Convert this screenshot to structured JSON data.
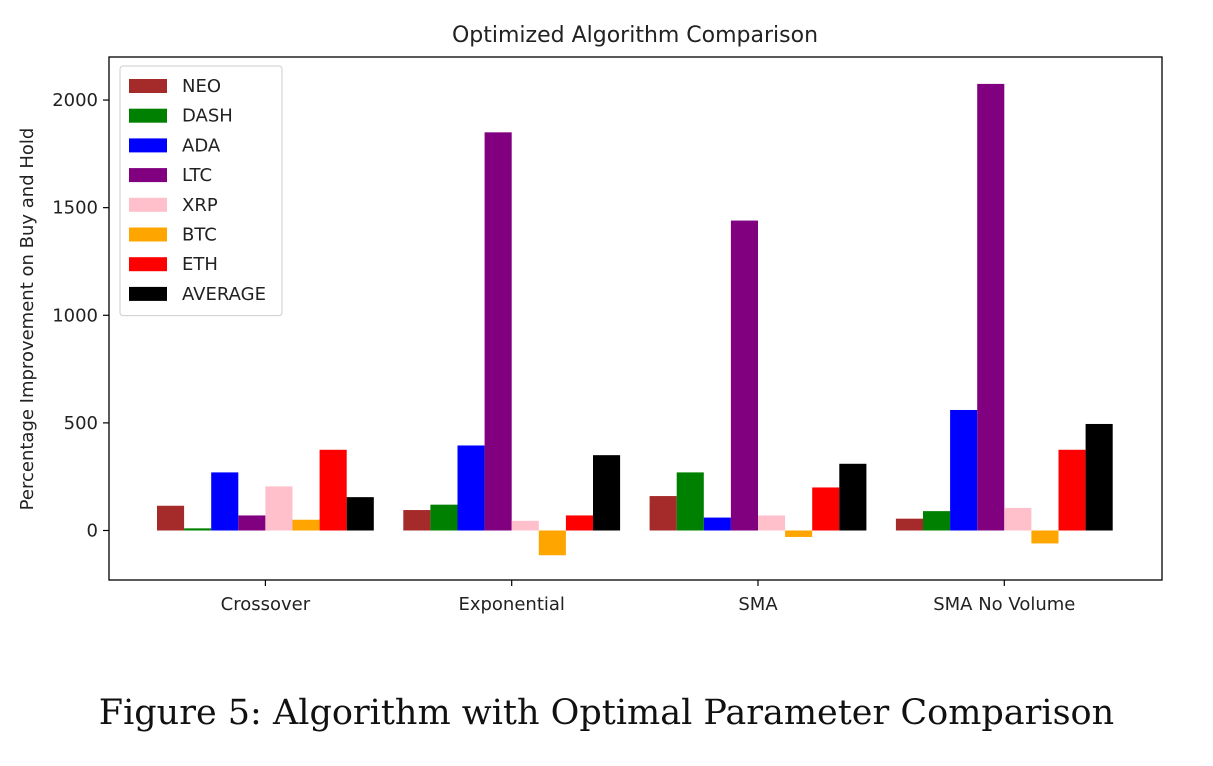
{
  "caption": "Figure 5: Algorithm with Optimal Parameter Comparison",
  "chart_data": {
    "type": "bar",
    "title": "Optimized Algorithm Comparison",
    "xlabel": "",
    "ylabel": "Percentage Improvement on Buy and Hold",
    "ylim": [
      -230,
      2200
    ],
    "yticks": [
      0,
      500,
      1000,
      1500,
      2000
    ],
    "grid": false,
    "legend_position": "top-left",
    "categories": [
      "Crossover",
      "Exponential",
      "SMA",
      "SMA No Volume"
    ],
    "series": [
      {
        "name": "NEO",
        "color": "#a52a2a",
        "values": [
          115,
          95,
          160,
          55
        ]
      },
      {
        "name": "DASH",
        "color": "#008000",
        "values": [
          10,
          120,
          270,
          90
        ]
      },
      {
        "name": "ADA",
        "color": "#0000ff",
        "values": [
          270,
          395,
          60,
          560
        ]
      },
      {
        "name": "LTC",
        "color": "#800080",
        "values": [
          70,
          1850,
          1440,
          2075
        ]
      },
      {
        "name": "XRP",
        "color": "#ffc0cb",
        "values": [
          205,
          45,
          70,
          105
        ]
      },
      {
        "name": "BTC",
        "color": "#ffa500",
        "values": [
          50,
          -115,
          -30,
          -60
        ]
      },
      {
        "name": "ETH",
        "color": "#ff0000",
        "values": [
          375,
          70,
          200,
          375
        ]
      },
      {
        "name": "AVERAGE",
        "color": "#000000",
        "values": [
          155,
          350,
          310,
          495
        ]
      }
    ]
  }
}
